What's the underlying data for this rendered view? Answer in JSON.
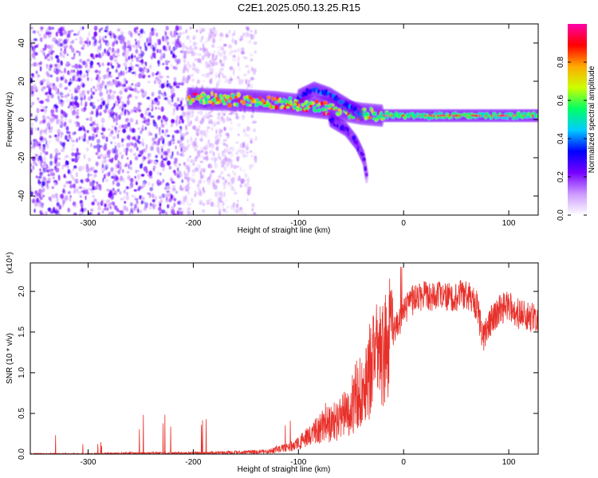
{
  "title": "C2E1.2025.050.13.25.R15",
  "chart_data": [
    {
      "type": "heatmap",
      "title": "C2E1.2025.050.13.25.R15",
      "xlabel": "Height of straight line (km)",
      "ylabel": "Frequency (Hz)",
      "xlim": [
        -355,
        128
      ],
      "ylim": [
        -50,
        50
      ],
      "xticks": [
        -300,
        -200,
        -100,
        0,
        100
      ],
      "yticks": [
        -40,
        -20,
        0,
        20,
        40
      ],
      "colorbar": {
        "label": "Normalized spectral amplitude",
        "range": [
          0,
          1
        ],
        "ticks": [
          0.0,
          0.2,
          0.4,
          0.6,
          0.8
        ],
        "tick_labels": [
          "0.0",
          "0.2",
          "0.4",
          "0.6",
          "0.8"
        ],
        "colormap": [
          "#ffffff",
          "#cc99ff",
          "#7700ff",
          "#0000ff",
          "#00ccff",
          "#00ff66",
          "#ccff00",
          "#ffaa00",
          "#ff0000",
          "#ff00aa"
        ]
      },
      "features": [
        {
          "name": "noise",
          "x_range": [
            -355,
            -140
          ],
          "freq_range": [
            -50,
            48
          ],
          "amplitude": 0.15
        },
        {
          "name": "main line",
          "points": [
            [
              -205,
              11
            ],
            [
              -150,
              10
            ],
            [
              -120,
              9
            ],
            [
              -90,
              7
            ],
            [
              -60,
              5
            ],
            [
              -40,
              3
            ],
            [
              -20,
              2
            ],
            [
              0,
              2
            ],
            [
              50,
              2
            ],
            [
              128,
              2
            ]
          ],
          "amplitude": 0.9
        },
        {
          "name": "upper branch",
          "points": [
            [
              -100,
              12
            ],
            [
              -85,
              16
            ],
            [
              -70,
              13
            ],
            [
              -55,
              8
            ],
            [
              -40,
              3
            ]
          ],
          "amplitude": 0.4
        },
        {
          "name": "lower branch",
          "points": [
            [
              -70,
              0
            ],
            [
              -55,
              -5
            ],
            [
              -45,
              -12
            ],
            [
              -38,
              -20
            ],
            [
              -35,
              -30
            ]
          ],
          "amplitude": 0.3
        }
      ]
    },
    {
      "type": "line",
      "xlabel": "Height of straight line (km)",
      "ylabel": "SNR (10 * v/v)",
      "multiplier": "(x10⁴)",
      "xlim": [
        -355,
        128
      ],
      "ylim": [
        0,
        2.35
      ],
      "xticks": [
        -300,
        -200,
        -100,
        0,
        100
      ],
      "yticks": [
        0.0,
        0.5,
        1.0,
        1.5,
        2.0
      ],
      "ytick_labels": [
        "0.0",
        "0.5",
        "1.0",
        "1.5",
        "2.0"
      ],
      "series": [
        {
          "color": "#e8302a",
          "x": [
            -355,
            -300,
            -250,
            -200,
            -150,
            -130,
            -110,
            -100,
            -90,
            -80,
            -70,
            -60,
            -50,
            -40,
            -30,
            -20,
            -10,
            0,
            10,
            20,
            30,
            40,
            50,
            60,
            70,
            75,
            80,
            90,
            100,
            110,
            120,
            128
          ],
          "y": [
            0.0,
            0.0,
            0.01,
            0.01,
            0.02,
            0.03,
            0.08,
            0.12,
            0.2,
            0.3,
            0.35,
            0.4,
            0.55,
            0.8,
            1.0,
            1.2,
            1.45,
            1.7,
            1.9,
            1.95,
            1.92,
            1.9,
            1.92,
            1.95,
            1.8,
            1.4,
            1.55,
            1.75,
            1.8,
            1.7,
            1.65,
            1.68
          ]
        }
      ],
      "grid": false
    }
  ]
}
